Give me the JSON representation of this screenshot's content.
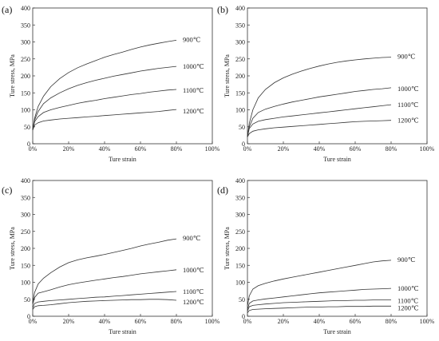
{
  "chart_data": [
    {
      "type": "line",
      "panel_label": "(a)",
      "xlabel": "Ture strain",
      "ylabel": "Ture stress, MPa",
      "xlim": [
        0,
        100
      ],
      "ylim": [
        0,
        400
      ],
      "xticks": [
        "0%",
        "20%",
        "40%",
        "60%",
        "80%",
        "100%"
      ],
      "yticks": [
        "0",
        "50",
        "100",
        "150",
        "200",
        "250",
        "300",
        "350",
        "400"
      ],
      "series": [
        {
          "name": "900℃",
          "x": [
            0,
            1,
            3,
            6,
            10,
            15,
            20,
            25,
            30,
            35,
            40,
            45,
            50,
            55,
            60,
            65,
            70,
            75,
            80
          ],
          "y": [
            40,
            75,
            110,
            140,
            168,
            192,
            210,
            224,
            235,
            245,
            255,
            263,
            270,
            278,
            285,
            291,
            296,
            301,
            305
          ]
        },
        {
          "name": "1000℃",
          "x": [
            0,
            1,
            3,
            6,
            10,
            15,
            20,
            25,
            30,
            35,
            40,
            45,
            50,
            55,
            60,
            65,
            70,
            75,
            80
          ],
          "y": [
            40,
            70,
            95,
            118,
            135,
            150,
            162,
            172,
            180,
            187,
            193,
            199,
            204,
            209,
            214,
            218,
            222,
            225,
            228
          ]
        },
        {
          "name": "1100℃",
          "x": [
            0,
            1,
            3,
            6,
            10,
            15,
            20,
            25,
            30,
            35,
            40,
            45,
            50,
            55,
            60,
            65,
            70,
            75,
            80
          ],
          "y": [
            40,
            65,
            80,
            92,
            100,
            107,
            113,
            119,
            124,
            128,
            133,
            137,
            141,
            145,
            148,
            152,
            155,
            158,
            160
          ]
        },
        {
          "name": "1200℃",
          "x": [
            0,
            1,
            3,
            6,
            10,
            15,
            20,
            25,
            30,
            35,
            40,
            45,
            50,
            55,
            60,
            65,
            70,
            75,
            80
          ],
          "y": [
            40,
            55,
            62,
            67,
            70,
            73,
            75,
            77,
            79,
            81,
            83,
            85,
            87,
            89,
            91,
            93,
            95,
            98,
            101
          ]
        }
      ]
    },
    {
      "type": "line",
      "panel_label": "(b)",
      "xlabel": "Ture strain",
      "ylabel": "Ture stress, MPa",
      "xlim": [
        0,
        100
      ],
      "ylim": [
        0,
        400
      ],
      "xticks": [
        "0%",
        "20%",
        "40%",
        "60%",
        "80%",
        "100%"
      ],
      "yticks": [
        "0",
        "50",
        "100",
        "150",
        "200",
        "250",
        "300",
        "350",
        "400"
      ],
      "series": [
        {
          "name": "900℃",
          "x": [
            0,
            1,
            3,
            6,
            10,
            15,
            20,
            25,
            30,
            35,
            40,
            45,
            50,
            55,
            60,
            65,
            70,
            75,
            80
          ],
          "y": [
            20,
            60,
            100,
            135,
            160,
            180,
            194,
            205,
            214,
            222,
            229,
            235,
            240,
            244,
            247,
            250,
            252,
            254,
            255
          ]
        },
        {
          "name": "1000℃",
          "x": [
            0,
            1,
            3,
            6,
            10,
            15,
            20,
            25,
            30,
            35,
            40,
            45,
            50,
            55,
            60,
            65,
            70,
            75,
            80
          ],
          "y": [
            20,
            50,
            75,
            92,
            102,
            110,
            117,
            123,
            128,
            133,
            138,
            142,
            146,
            150,
            154,
            157,
            160,
            162,
            165
          ]
        },
        {
          "name": "1100℃",
          "x": [
            0,
            1,
            3,
            6,
            10,
            15,
            20,
            25,
            30,
            35,
            40,
            45,
            50,
            55,
            60,
            65,
            70,
            75,
            80
          ],
          "y": [
            20,
            45,
            58,
            66,
            71,
            75,
            79,
            82,
            85,
            88,
            91,
            94,
            97,
            100,
            103,
            106,
            109,
            112,
            115
          ]
        },
        {
          "name": "1200℃",
          "x": [
            0,
            1,
            3,
            6,
            10,
            15,
            20,
            25,
            30,
            35,
            40,
            45,
            50,
            55,
            60,
            65,
            70,
            75,
            80
          ],
          "y": [
            20,
            30,
            37,
            41,
            44,
            47,
            49,
            51,
            53,
            55,
            57,
            59,
            61,
            63,
            65,
            66,
            67,
            68,
            69
          ]
        }
      ]
    },
    {
      "type": "line",
      "panel_label": "(c)",
      "xlabel": "Ture strain",
      "ylabel": "Ture stress, MPa",
      "xlim": [
        0,
        100
      ],
      "ylim": [
        0,
        400
      ],
      "xticks": [
        "0%",
        "20%",
        "40%",
        "60%",
        "80%",
        "100%"
      ],
      "yticks": [
        "0",
        "50",
        "100",
        "150",
        "200",
        "250",
        "300",
        "350",
        "400"
      ],
      "series": [
        {
          "name": "900℃",
          "x": [
            0,
            1,
            3,
            6,
            10,
            15,
            20,
            25,
            30,
            35,
            40,
            45,
            50,
            55,
            60,
            65,
            70,
            75,
            80
          ],
          "y": [
            40,
            70,
            95,
            112,
            128,
            145,
            158,
            166,
            172,
            177,
            182,
            188,
            194,
            200,
            207,
            213,
            218,
            224,
            228
          ]
        },
        {
          "name": "1000℃",
          "x": [
            0,
            1,
            3,
            6,
            10,
            15,
            20,
            25,
            30,
            35,
            40,
            45,
            50,
            55,
            60,
            65,
            70,
            75,
            80
          ],
          "y": [
            35,
            55,
            68,
            72,
            78,
            86,
            93,
            98,
            102,
            106,
            110,
            114,
            117,
            121,
            125,
            128,
            131,
            134,
            137
          ]
        },
        {
          "name": "1100℃",
          "x": [
            0,
            1,
            3,
            6,
            10,
            15,
            20,
            25,
            30,
            35,
            40,
            45,
            50,
            55,
            60,
            65,
            70,
            75,
            80
          ],
          "y": [
            25,
            38,
            42,
            44,
            46,
            48,
            50,
            52,
            54,
            56,
            57,
            59,
            61,
            63,
            65,
            67,
            69,
            71,
            73
          ]
        },
        {
          "name": "1200℃",
          "x": [
            0,
            1,
            3,
            6,
            10,
            15,
            20,
            25,
            30,
            35,
            40,
            45,
            50,
            55,
            60,
            65,
            70,
            75,
            80
          ],
          "y": [
            20,
            28,
            31,
            32,
            34,
            37,
            40,
            42,
            44,
            45,
            46,
            47,
            48,
            49,
            49,
            50,
            50,
            49,
            47
          ]
        }
      ]
    },
    {
      "type": "line",
      "panel_label": "(d)",
      "xlabel": "Ture strain",
      "ylabel": "Ture stress, MPa",
      "xlim": [
        0,
        100
      ],
      "ylim": [
        0,
        400
      ],
      "xticks": [
        "0%",
        "20%",
        "40%",
        "60%",
        "80%",
        "100%"
      ],
      "yticks": [
        "0",
        "50",
        "100",
        "150",
        "200",
        "250",
        "300",
        "350",
        "400"
      ],
      "series": [
        {
          "name": "900℃",
          "x": [
            0,
            1,
            3,
            6,
            10,
            15,
            20,
            25,
            30,
            35,
            40,
            45,
            50,
            55,
            60,
            65,
            70,
            75,
            80
          ],
          "y": [
            30,
            60,
            80,
            90,
            97,
            104,
            110,
            115,
            120,
            125,
            130,
            135,
            140,
            145,
            150,
            155,
            160,
            163,
            165
          ]
        },
        {
          "name": "1000℃",
          "x": [
            0,
            1,
            3,
            6,
            10,
            15,
            20,
            25,
            30,
            35,
            40,
            45,
            50,
            55,
            60,
            65,
            70,
            75,
            80
          ],
          "y": [
            20,
            38,
            45,
            48,
            51,
            54,
            57,
            60,
            63,
            66,
            69,
            71,
            73,
            75,
            77,
            79,
            80,
            81,
            82
          ]
        },
        {
          "name": "1100℃",
          "x": [
            0,
            1,
            3,
            6,
            10,
            15,
            20,
            25,
            30,
            35,
            40,
            45,
            50,
            55,
            60,
            65,
            70,
            75,
            80
          ],
          "y": [
            15,
            28,
            32,
            34,
            36,
            38,
            40,
            41,
            42,
            43,
            44,
            45,
            46,
            46,
            47,
            47,
            48,
            48,
            48
          ]
        },
        {
          "name": "1200℃",
          "x": [
            0,
            1,
            3,
            6,
            10,
            15,
            20,
            25,
            30,
            35,
            40,
            45,
            50,
            55,
            60,
            65,
            70,
            75,
            80
          ],
          "y": [
            10,
            17,
            20,
            21,
            22,
            23,
            24,
            25,
            26,
            27,
            27,
            28,
            28,
            29,
            29,
            29,
            30,
            30,
            30
          ]
        }
      ]
    }
  ]
}
